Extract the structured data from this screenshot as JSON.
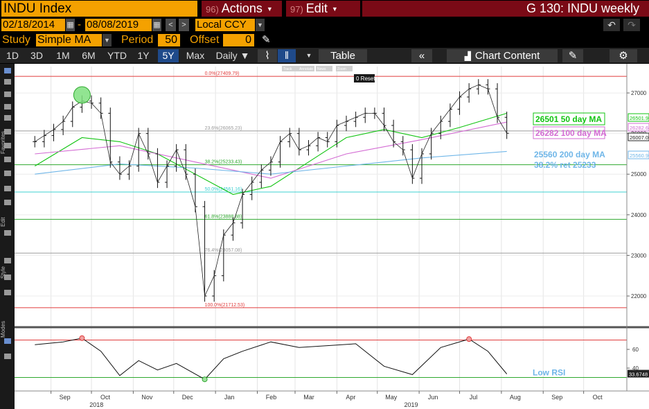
{
  "header": {
    "title": "INDU Index",
    "actions_num": "96)",
    "actions_label": "Actions",
    "edit_num": "97)",
    "edit_label": "Edit",
    "window_title": "G 130: INDU weekly"
  },
  "toolbar": {
    "start_date": "02/18/2014",
    "date_sep": "-",
    "end_date": "08/08/2019",
    "currency": "Local CCY",
    "study_label": "Study",
    "study_value": "Simple MA",
    "period_label": "Period",
    "period_value": "50",
    "offset_label": "Offset",
    "offset_value": "0",
    "ranges": [
      "1D",
      "3D",
      "1M",
      "6M",
      "YTD",
      "1Y",
      "5Y",
      "Max"
    ],
    "active_range": "5Y",
    "frequency": "Daily ▼",
    "table_label": "Table",
    "chart_content_label": "Chart Content"
  },
  "chart_tools": [
    "Track",
    "Annotate",
    "News",
    "Zoom"
  ],
  "reset_label": "Reset",
  "left_tabs": [
    "Favorites",
    "Edit",
    "Style",
    "Modes"
  ],
  "colors": {
    "orange": "#f4a100",
    "maroon": "#7a0a16",
    "ma50": "#11c411",
    "ma100": "#d36bd3",
    "ma200": "#6fb6e8",
    "fib_red": "#e03c3c",
    "fib_green": "#2ea82e",
    "fib_gray": "#9a9a9a",
    "fib_cyan": "#3cd0d0"
  },
  "chart_data": {
    "type": "line",
    "title": "INDU weekly",
    "x_axis": {
      "month_labels": [
        "Sep",
        "Oct",
        "Nov",
        "Dec",
        "Jan",
        "Feb",
        "Mar",
        "Apr",
        "May",
        "Jun",
        "Jul",
        "Aug",
        "Sep",
        "Oct"
      ],
      "year_labels": [
        "2018",
        "2019"
      ]
    },
    "y_axis": {
      "ticks": [
        27000,
        26000,
        25000,
        24000,
        23000,
        22000
      ],
      "range": [
        21300,
        27650
      ]
    },
    "series": [
      {
        "name": "INDU",
        "kind": "price",
        "x": [
          "2018-08-20",
          "2018-08-27",
          "2018-09-03",
          "2018-09-10",
          "2018-09-17",
          "2018-09-24",
          "2018-10-01",
          "2018-10-08",
          "2018-10-15",
          "2018-10-22",
          "2018-10-29",
          "2018-11-05",
          "2018-11-12",
          "2018-11-19",
          "2018-11-26",
          "2018-12-03",
          "2018-12-10",
          "2018-12-17",
          "2018-12-24",
          "2018-12-31",
          "2019-01-07",
          "2019-01-14",
          "2019-01-21",
          "2019-01-28",
          "2019-02-04",
          "2019-02-11",
          "2019-02-18",
          "2019-02-25",
          "2019-03-04",
          "2019-03-11",
          "2019-03-18",
          "2019-03-25",
          "2019-04-01",
          "2019-04-08",
          "2019-04-15",
          "2019-04-22",
          "2019-04-29",
          "2019-05-06",
          "2019-05-13",
          "2019-05-20",
          "2019-05-27",
          "2019-06-03",
          "2019-06-10",
          "2019-06-17",
          "2019-06-24",
          "2019-07-01",
          "2019-07-08",
          "2019-07-15",
          "2019-07-22",
          "2019-07-29",
          "2019-08-05"
        ],
        "y": [
          25800,
          25950,
          26100,
          26300,
          26650,
          26800,
          26750,
          26500,
          25300,
          25000,
          25200,
          26000,
          25500,
          24800,
          25200,
          25600,
          25000,
          24200,
          22000,
          22500,
          23500,
          23800,
          24500,
          24800,
          25100,
          25300,
          25800,
          26000,
          25600,
          25700,
          25900,
          25800,
          26200,
          26300,
          26400,
          26500,
          26500,
          26200,
          25800,
          25600,
          24900,
          25500,
          26000,
          26300,
          26600,
          26900,
          27100,
          27200,
          27100,
          26400,
          26007.07
        ]
      },
      {
        "name": "50 day MA",
        "label": "26501 50 day MA",
        "last_value": 26501.96,
        "x": [
          "2018-08-20",
          "2018-09-24",
          "2018-10-22",
          "2018-11-19",
          "2018-12-17",
          "2019-01-14",
          "2019-02-11",
          "2019-03-11",
          "2019-04-08",
          "2019-05-06",
          "2019-06-03",
          "2019-07-01",
          "2019-08-05"
        ],
        "y": [
          25200,
          25900,
          25800,
          25500,
          25000,
          24500,
          24700,
          25300,
          25900,
          26100,
          25900,
          26150,
          26500
        ]
      },
      {
        "name": "100 day MA",
        "label": "26282 100 day MA",
        "last_value": 26282.64,
        "x": [
          "2018-08-20",
          "2018-10-22",
          "2018-12-17",
          "2019-02-11",
          "2019-04-08",
          "2019-06-03",
          "2019-08-05"
        ],
        "y": [
          25500,
          25700,
          25300,
          24900,
          25500,
          25850,
          26282
        ]
      },
      {
        "name": "200 day MA",
        "label": "25560 200 day MA",
        "last_value": 25560.9,
        "x": [
          "2018-08-20",
          "2018-10-22",
          "2018-12-17",
          "2019-02-11",
          "2019-04-08",
          "2019-06-03",
          "2019-08-05"
        ],
        "y": [
          25000,
          25250,
          25150,
          25000,
          25200,
          25400,
          25560
        ]
      }
    ],
    "fibonacci": [
      {
        "label": "0.0%(27409.79)",
        "level": 27409.79,
        "color": "red"
      },
      {
        "label": "23.6%(26065.23)",
        "level": 26065.23,
        "color": "gray"
      },
      {
        "label": "38.2%(25233.43)",
        "level": 25233.43,
        "color": "green"
      },
      {
        "label": "50.0%(24561.16)",
        "level": 24561.16,
        "color": "cyan"
      },
      {
        "label": "61.8%(23888.88)",
        "level": 23888.88,
        "color": "green"
      },
      {
        "label": "76.4%(23057.08)",
        "level": 23057.08,
        "color": "gray"
      },
      {
        "label": "100.0%(21712.53)",
        "level": 21712.53,
        "color": "red"
      }
    ],
    "annotations": [
      {
        "text": "26501 50 day MA",
        "color": "ma50"
      },
      {
        "text": "26282 100 day MA",
        "color": "ma100"
      },
      {
        "text": "25560 200 day MA",
        "color": "ma200"
      },
      {
        "text": "38.2% ret 25233",
        "color": "ma200"
      }
    ],
    "right_price_tags": [
      {
        "value": "26501.96",
        "color": "ma50"
      },
      {
        "value": "26282.64",
        "color": "ma100"
      },
      {
        "value": "26007.07",
        "color": "white"
      },
      {
        "value": "25560.90",
        "color": "ma200"
      }
    ],
    "rsi": {
      "name": "RSI",
      "ticks": [
        60,
        40
      ],
      "range": [
        20,
        80
      ],
      "overbought": 70,
      "oversold": 30,
      "last_value": "33.6748",
      "annotation": "Low RSI",
      "x": [
        "2018-08-20",
        "2018-09-10",
        "2018-09-24",
        "2018-10-08",
        "2018-10-22",
        "2018-11-05",
        "2018-11-19",
        "2018-12-03",
        "2018-12-24",
        "2019-01-07",
        "2019-01-21",
        "2019-02-11",
        "2019-03-04",
        "2019-03-25",
        "2019-04-15",
        "2019-05-06",
        "2019-05-27",
        "2019-06-17",
        "2019-07-08",
        "2019-07-22",
        "2019-08-05"
      ],
      "y": [
        65,
        68,
        72,
        58,
        32,
        48,
        38,
        45,
        28,
        50,
        58,
        68,
        62,
        64,
        66,
        42,
        33,
        62,
        71,
        58,
        33.67
      ]
    },
    "grid": true
  }
}
